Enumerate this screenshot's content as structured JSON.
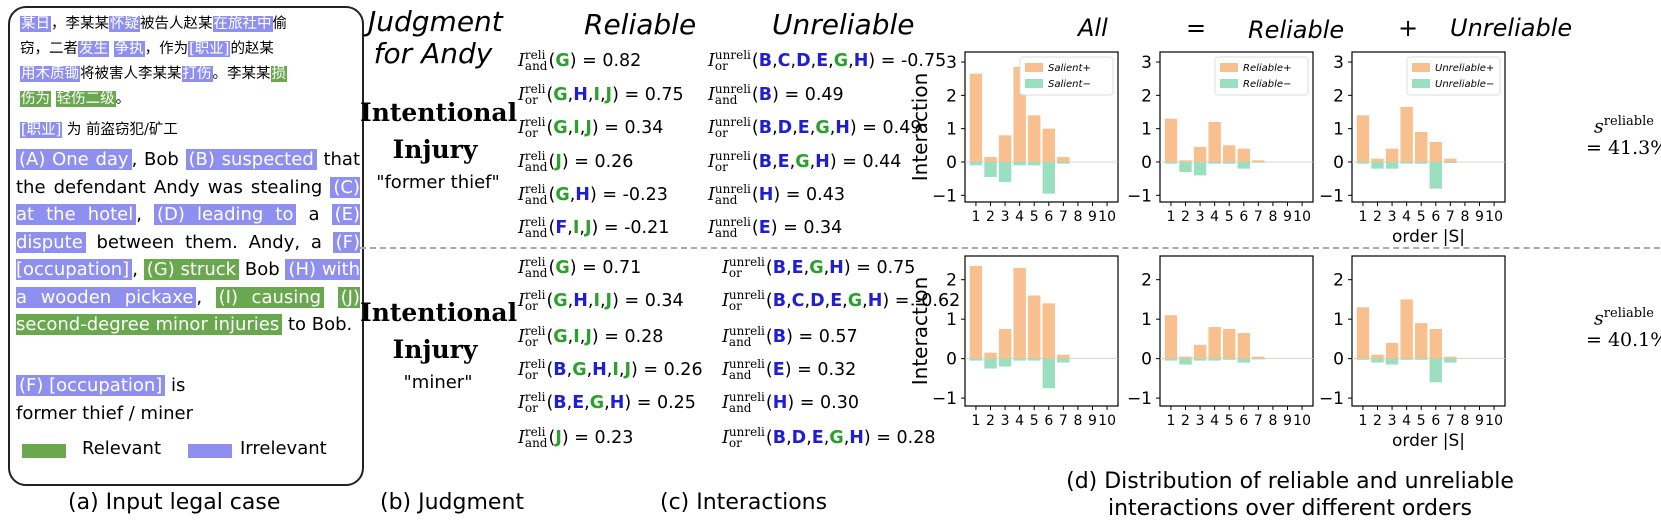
{
  "panel_a": {
    "zh_lines": [
      [
        [
          "某日",
          "b"
        ],
        [
          "，李某某",
          ""
        ],
        [
          "怀疑",
          "b"
        ],
        [
          "被告人赵某",
          ""
        ],
        [
          "在旅社中",
          "b"
        ],
        [
          "偷",
          ""
        ]
      ],
      [
        [
          "窃，二者",
          ""
        ],
        [
          "发生",
          "b"
        ],
        [
          " ",
          ""
        ],
        [
          "争执",
          "b"
        ],
        [
          "，作为",
          ""
        ],
        [
          "[职业]",
          "b"
        ],
        [
          "的赵某",
          ""
        ]
      ],
      [
        [
          "用木质锄",
          "b"
        ],
        [
          "将被害人李某某",
          ""
        ],
        [
          "打伤",
          "b"
        ],
        [
          "。李某某",
          ""
        ],
        [
          "损",
          "g"
        ]
      ],
      [
        [
          "伤为",
          "g"
        ],
        [
          " ",
          ""
        ],
        [
          "轻伤二级",
          "g"
        ],
        [
          "。",
          ""
        ]
      ]
    ],
    "zh_occ": [
      [
        "[职业]",
        "b"
      ],
      [
        " 为 前盗窃犯/矿工",
        ""
      ]
    ],
    "en_case": [
      [
        "(A) One day",
        "b"
      ],
      [
        ", Bob ",
        ""
      ],
      [
        "(B) suspected",
        "b"
      ],
      [
        " that the defendant Andy was stealing ",
        ""
      ],
      [
        "(C) at the hotel",
        "b"
      ],
      [
        ", ",
        ""
      ],
      [
        "(D) leading to",
        "b"
      ],
      [
        " a ",
        ""
      ],
      [
        "(E) dispute",
        "b"
      ],
      [
        " between them. Andy, a ",
        ""
      ],
      [
        "(F) [occupation]",
        "b"
      ],
      [
        ", ",
        ""
      ],
      [
        "(G) struck",
        "g"
      ],
      [
        " Bob ",
        ""
      ],
      [
        "(H) with a wooden pickaxe",
        "b"
      ],
      [
        ", ",
        ""
      ],
      [
        "(I) causing",
        "g"
      ],
      [
        " ",
        ""
      ],
      [
        "(J) second-degree minor injuries",
        "g"
      ],
      [
        " to Bob.",
        ""
      ]
    ],
    "occ_tag": "(F) [occupation]",
    "occ_is": " is",
    "occ_values": "former thief / miner",
    "legend_relevant": "Relevant",
    "legend_irrelevant": "Irrelevant",
    "caption": "(a) Input legal case"
  },
  "panel_b": {
    "title_line1": "Judgment",
    "title_line2": "for Andy",
    "row1_verdict_1": "Intentional",
    "row1_verdict_2": "Injury",
    "row1_occ": "\"former thief\"",
    "row2_verdict_1": "Intentional",
    "row2_verdict_2": "Injury",
    "row2_occ": "\"miner\"",
    "caption": "(b) Judgment"
  },
  "panel_c": {
    "reliable_header": "Reliable",
    "unreliable_header": "Unreliable",
    "caption": "(c) Interactions",
    "row1_reliable": [
      {
        "op": "and",
        "set": [
          [
            "G",
            "g"
          ]
        ],
        "value": "0.82"
      },
      {
        "op": "or",
        "set": [
          [
            "G",
            "g"
          ],
          [
            "H",
            "b"
          ],
          [
            "I",
            "g"
          ],
          [
            "J",
            "g"
          ]
        ],
        "value": "0.75"
      },
      {
        "op": "or",
        "set": [
          [
            "G",
            "g"
          ],
          [
            "I",
            "g"
          ],
          [
            "J",
            "g"
          ]
        ],
        "value": "0.34"
      },
      {
        "op": "and",
        "set": [
          [
            "J",
            "g"
          ]
        ],
        "value": "0.26"
      },
      {
        "op": "and",
        "set": [
          [
            "G",
            "g"
          ],
          [
            "H",
            "b"
          ]
        ],
        "value": "-0.23"
      },
      {
        "op": "and",
        "set": [
          [
            "F",
            "b"
          ],
          [
            "I",
            "g"
          ],
          [
            "J",
            "g"
          ]
        ],
        "value": "-0.21"
      }
    ],
    "row1_unreliable": [
      {
        "op": "or",
        "set": [
          [
            "B",
            "b"
          ],
          [
            "C",
            "b"
          ],
          [
            "D",
            "b"
          ],
          [
            "E",
            "b"
          ],
          [
            "G",
            "g"
          ],
          [
            "H",
            "b"
          ]
        ],
        "value": "-0.75"
      },
      {
        "op": "and",
        "set": [
          [
            "B",
            "b"
          ]
        ],
        "value": "0.49"
      },
      {
        "op": "or",
        "set": [
          [
            "B",
            "b"
          ],
          [
            "D",
            "b"
          ],
          [
            "E",
            "b"
          ],
          [
            "G",
            "g"
          ],
          [
            "H",
            "b"
          ]
        ],
        "value": "0.49"
      },
      {
        "op": "or",
        "set": [
          [
            "B",
            "b"
          ],
          [
            "E",
            "b"
          ],
          [
            "G",
            "g"
          ],
          [
            "H",
            "b"
          ]
        ],
        "value": "0.44"
      },
      {
        "op": "and",
        "set": [
          [
            "H",
            "b"
          ]
        ],
        "value": "0.43"
      },
      {
        "op": "and",
        "set": [
          [
            "E",
            "b"
          ]
        ],
        "value": "0.34"
      }
    ],
    "row2_reliable": [
      {
        "op": "and",
        "set": [
          [
            "G",
            "g"
          ]
        ],
        "value": "0.71"
      },
      {
        "op": "or",
        "set": [
          [
            "G",
            "g"
          ],
          [
            "H",
            "b"
          ],
          [
            "I",
            "g"
          ],
          [
            "J",
            "g"
          ]
        ],
        "value": "0.34"
      },
      {
        "op": "or",
        "set": [
          [
            "G",
            "g"
          ],
          [
            "I",
            "g"
          ],
          [
            "J",
            "g"
          ]
        ],
        "value": "0.28"
      },
      {
        "op": "or",
        "set": [
          [
            "B",
            "b"
          ],
          [
            "G",
            "g"
          ],
          [
            "H",
            "b"
          ],
          [
            "I",
            "g"
          ],
          [
            "J",
            "g"
          ]
        ],
        "value": "0.26"
      },
      {
        "op": "or",
        "set": [
          [
            "B",
            "b"
          ],
          [
            "E",
            "b"
          ],
          [
            "G",
            "g"
          ],
          [
            "H",
            "b"
          ]
        ],
        "value": "0.25"
      },
      {
        "op": "and",
        "set": [
          [
            "J",
            "g"
          ]
        ],
        "value": "0.23"
      }
    ],
    "row2_unreliable": [
      {
        "op": "or",
        "set": [
          [
            "B",
            "b"
          ],
          [
            "E",
            "b"
          ],
          [
            "G",
            "g"
          ],
          [
            "H",
            "b"
          ]
        ],
        "value": "0.75"
      },
      {
        "op": "or",
        "set": [
          [
            "B",
            "b"
          ],
          [
            "C",
            "b"
          ],
          [
            "D",
            "b"
          ],
          [
            "E",
            "b"
          ],
          [
            "G",
            "g"
          ],
          [
            "H",
            "b"
          ]
        ],
        "value": "-0.62"
      },
      {
        "op": "and",
        "set": [
          [
            "B",
            "b"
          ]
        ],
        "value": "0.57"
      },
      {
        "op": "and",
        "set": [
          [
            "E",
            "b"
          ]
        ],
        "value": "0.32"
      },
      {
        "op": "and",
        "set": [
          [
            "H",
            "b"
          ]
        ],
        "value": "0.30"
      },
      {
        "op": "or",
        "set": [
          [
            "B",
            "b"
          ],
          [
            "D",
            "b"
          ],
          [
            "E",
            "b"
          ],
          [
            "G",
            "g"
          ],
          [
            "H",
            "b"
          ]
        ],
        "value": "0.28"
      }
    ]
  },
  "panel_d": {
    "header_all": "All",
    "header_eq": "=",
    "header_reliable": "Reliable",
    "header_plus": "+",
    "header_unreliable": "Unreliable",
    "caption_line1": "(d) Distribution of reliable and unreliable",
    "caption_line2": "interactions over different orders",
    "s_label": "s",
    "s_sup": "reliable",
    "s_row1": "= 41.3%",
    "s_row2": "= 40.1%"
  },
  "colors": {
    "positive": "#f8c08e",
    "negative": "#9adfc0",
    "blue_hl": "#8f8ff0",
    "green_hl": "#6aa84f",
    "token_green": "#2ca02c",
    "token_blue": "#1f1fd1"
  },
  "chart_data": [
    {
      "type": "bar",
      "row": 1,
      "title": "All",
      "ylabel": "Interaction",
      "ylim": [
        -1.2,
        3.3
      ],
      "categories": [
        "1",
        "2",
        "3",
        "4",
        "5",
        "6",
        "7",
        "8",
        "9",
        "10"
      ],
      "legend": [
        "Salient+",
        "Salient−"
      ],
      "series": [
        {
          "name": "Salient+",
          "values": [
            2.65,
            0.15,
            0.8,
            2.85,
            1.4,
            1.0,
            0.15,
            0,
            0,
            0
          ]
        },
        {
          "name": "Salient−",
          "values": [
            -0.1,
            -0.45,
            -0.6,
            -0.1,
            -0.1,
            -0.95,
            -0.05,
            0,
            0,
            0
          ]
        }
      ]
    },
    {
      "type": "bar",
      "row": 1,
      "title": "Reliable",
      "ylim": [
        -1.2,
        3.3
      ],
      "categories": [
        "1",
        "2",
        "3",
        "4",
        "5",
        "6",
        "7",
        "8",
        "9",
        "10"
      ],
      "legend": [
        "Reliable+",
        "Reliable−"
      ],
      "series": [
        {
          "name": "Reliable+",
          "values": [
            1.3,
            0.05,
            0.45,
            1.2,
            0.5,
            0.4,
            0.05,
            0,
            0,
            0
          ]
        },
        {
          "name": "Reliable−",
          "values": [
            -0.05,
            -0.3,
            -0.4,
            -0.05,
            -0.05,
            -0.2,
            -0.02,
            0,
            0,
            0
          ]
        }
      ]
    },
    {
      "type": "bar",
      "row": 1,
      "title": "Unreliable",
      "xlabel": "order |S|",
      "ylim": [
        -1.2,
        3.3
      ],
      "categories": [
        "1",
        "2",
        "3",
        "4",
        "5",
        "6",
        "7",
        "8",
        "9",
        "10"
      ],
      "legend": [
        "Unreliable+",
        "Unreliable−"
      ],
      "series": [
        {
          "name": "Unreliable+",
          "values": [
            1.4,
            0.1,
            0.4,
            1.65,
            0.9,
            0.6,
            0.1,
            0,
            0,
            0
          ]
        },
        {
          "name": "Unreliable−",
          "values": [
            -0.05,
            -0.2,
            -0.2,
            -0.05,
            -0.05,
            -0.8,
            -0.03,
            0,
            0,
            0
          ]
        }
      ]
    },
    {
      "type": "bar",
      "row": 2,
      "title": "All",
      "ylabel": "Interaction",
      "ylim": [
        -1.2,
        2.6
      ],
      "categories": [
        "1",
        "2",
        "3",
        "4",
        "5",
        "6",
        "7",
        "8",
        "9",
        "10"
      ],
      "series": [
        {
          "name": "positive",
          "values": [
            2.35,
            0.15,
            0.75,
            2.3,
            1.6,
            1.4,
            0.1,
            0,
            0,
            0
          ]
        },
        {
          "name": "negative",
          "values": [
            -0.05,
            -0.25,
            -0.2,
            -0.05,
            -0.05,
            -0.75,
            -0.1,
            0,
            0,
            0
          ]
        }
      ]
    },
    {
      "type": "bar",
      "row": 2,
      "title": "Reliable",
      "ylim": [
        -1.2,
        2.6
      ],
      "categories": [
        "1",
        "2",
        "3",
        "4",
        "5",
        "6",
        "7",
        "8",
        "9",
        "10"
      ],
      "series": [
        {
          "name": "positive",
          "values": [
            1.1,
            0.05,
            0.35,
            0.8,
            0.75,
            0.65,
            0.05,
            0,
            0,
            0
          ]
        },
        {
          "name": "negative",
          "values": [
            -0.05,
            -0.15,
            -0.05,
            -0.05,
            -0.03,
            -0.1,
            -0.02,
            0,
            0,
            0
          ]
        }
      ]
    },
    {
      "type": "bar",
      "row": 2,
      "title": "Unreliable",
      "xlabel": "order |S|",
      "ylim": [
        -1.2,
        2.6
      ],
      "categories": [
        "1",
        "2",
        "3",
        "4",
        "5",
        "6",
        "7",
        "8",
        "9",
        "10"
      ],
      "series": [
        {
          "name": "positive",
          "values": [
            1.3,
            0.1,
            0.4,
            1.5,
            0.9,
            0.75,
            0.05,
            0,
            0,
            0
          ]
        },
        {
          "name": "negative",
          "values": [
            -0.03,
            -0.1,
            -0.15,
            -0.03,
            -0.03,
            -0.6,
            -0.1,
            0,
            0,
            0
          ]
        }
      ]
    }
  ]
}
